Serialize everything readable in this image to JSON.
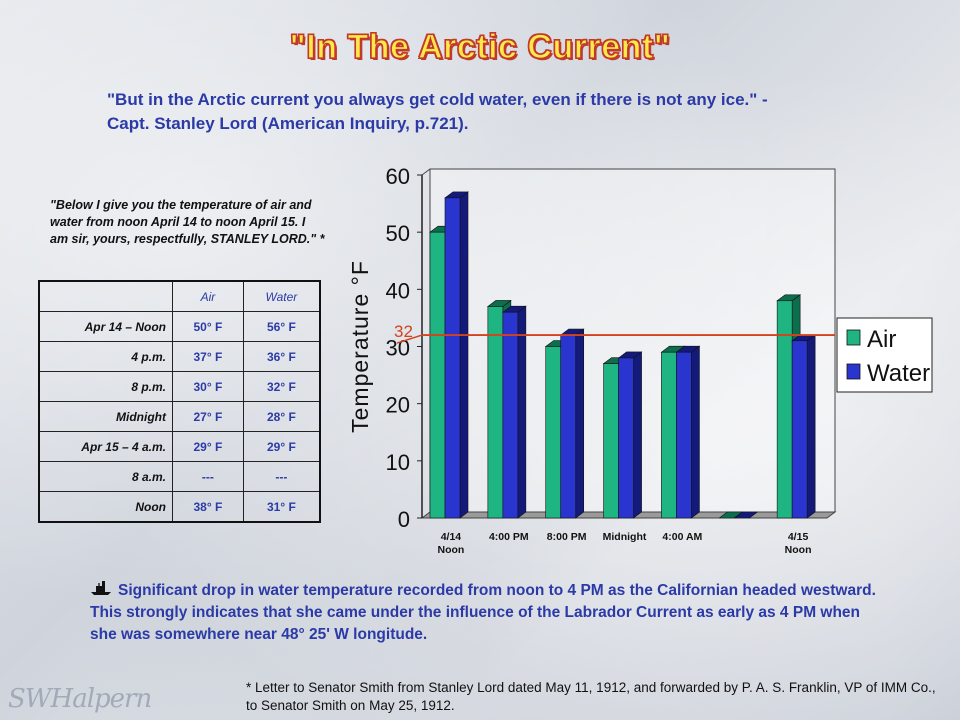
{
  "title": "\"In The Arctic Current\"",
  "quote": "\"But in the Arctic current you always get cold water, even if there is not any ice.\" - Capt. Stanley Lord (American Inquiry, p.721).",
  "letter": "\"Below I give you the temperature of air and water from noon April 14 to noon April 15. I am sir, yours, respectfully,  STANLEY LORD.\" *",
  "table": {
    "headers": [
      "",
      "Air",
      "Water"
    ],
    "rows": [
      {
        "label": "Apr 14 – Noon",
        "air": "50° F",
        "water": "56° F"
      },
      {
        "label": "4 p.m.",
        "air": "37° F",
        "water": "36° F"
      },
      {
        "label": "8 p.m.",
        "air": "30° F",
        "water": "32° F"
      },
      {
        "label": "Midnight",
        "air": "27° F",
        "water": "28° F"
      },
      {
        "label": "Apr 15 – 4 a.m.",
        "air": "29° F",
        "water": "29° F"
      },
      {
        "label": "8 a.m.",
        "air": "---",
        "water": "---"
      },
      {
        "label": "Noon",
        "air": "38° F",
        "water": "31° F"
      }
    ]
  },
  "chart_data": {
    "type": "bar",
    "categories": [
      "4/14\nNoon",
      "4:00 PM",
      "8:00 PM",
      "Midnight",
      "4:00 AM",
      "",
      "4/15\nNoon"
    ],
    "series": [
      {
        "name": "Air",
        "values": [
          50,
          37,
          30,
          27,
          29,
          0,
          38
        ],
        "color": "#1fb583"
      },
      {
        "name": "Water",
        "values": [
          56,
          36,
          32,
          28,
          29,
          0,
          31
        ],
        "color": "#2a35d0"
      }
    ],
    "ylabel": "Temperature °F",
    "ylim": [
      0,
      60
    ],
    "yticks": [
      0,
      10,
      20,
      30,
      40,
      50,
      60
    ],
    "reference_line": {
      "value": 32,
      "label": "32",
      "color": "#d2431e"
    },
    "legend": "right",
    "grid": false
  },
  "bullet": "Significant drop in water temperature recorded from noon to 4 PM as the Californian headed westward. This strongly indicates that she came under the influence of the Labrador Current as early as 4 PM when she was somewhere near 48° 25' W longitude.",
  "footnote": "* Letter to Senator Smith from Stanley Lord dated May 11, 1912, and forwarded by P. A. S. Franklin, VP of IMM Co., to Senator Smith on May 25, 1912.",
  "signature": "SWHalpern",
  "icons": {
    "bullet": "ship-icon"
  }
}
